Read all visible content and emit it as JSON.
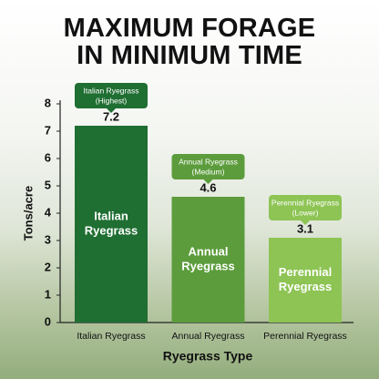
{
  "chart_data": {
    "type": "bar",
    "title": "MAXIMUM FORAGE IN MINIMUM TIME",
    "categories": [
      "Italian Ryegrass",
      "Annual Ryegrass",
      "Perennial Ryegrass"
    ],
    "values": [
      7.2,
      4.6,
      3.1
    ],
    "colors": [
      "#1f6e32",
      "#5c9c3c",
      "#8dc454"
    ],
    "bar_labels": [
      [
        "Italian",
        "Ryegrass"
      ],
      [
        "Annual",
        "Ryegrass"
      ],
      [
        "Perennial",
        "Ryegrass"
      ]
    ],
    "callouts": [
      "(Highest)",
      "(Medium)",
      "(Lower)"
    ],
    "ylim": [
      0,
      8
    ],
    "yticks": [
      0,
      1,
      2,
      3,
      4,
      5,
      6,
      7,
      8
    ],
    "ylabel": "Tons/acre",
    "xlabel": "Ryegrass Type"
  }
}
